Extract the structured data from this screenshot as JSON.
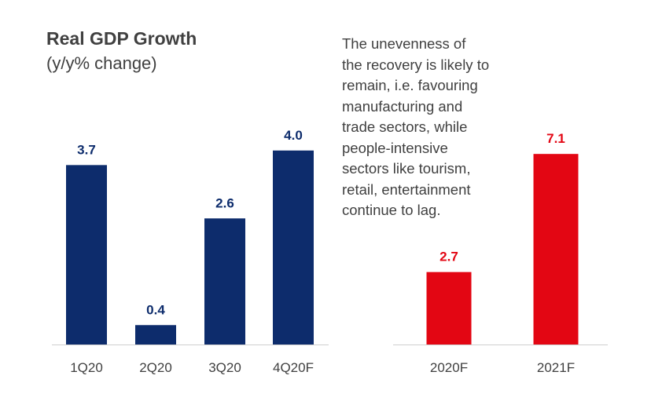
{
  "title": "Real GDP Growth",
  "subtitle": "(y/y% change)",
  "note": "The unevenness of\nthe recovery is likely to\nremain, i.e. favouring\nmanufacturing and\ntrade sectors, while\npeople-intensive\nsectors like tourism,\nretail, entertainment\ncontinue to lag.",
  "chart_data": [
    {
      "type": "bar",
      "categories": [
        "1Q20",
        "2Q20",
        "3Q20",
        "4Q20F"
      ],
      "values": [
        3.7,
        0.4,
        2.6,
        4.0
      ],
      "data_labels": [
        "3.7",
        "0.4",
        "2.6",
        "4.0"
      ],
      "color": "#0d2c6c",
      "title": "Real GDP Growth",
      "ylabel": "",
      "ylim": [
        0,
        4.4
      ],
      "grid": false
    },
    {
      "type": "bar",
      "categories": [
        "2020F",
        "2021F"
      ],
      "values": [
        2.7,
        7.1
      ],
      "data_labels": [
        "2.7",
        "7.1"
      ],
      "color": "#e30613",
      "ylim": [
        0,
        7.7
      ],
      "grid": false
    }
  ]
}
